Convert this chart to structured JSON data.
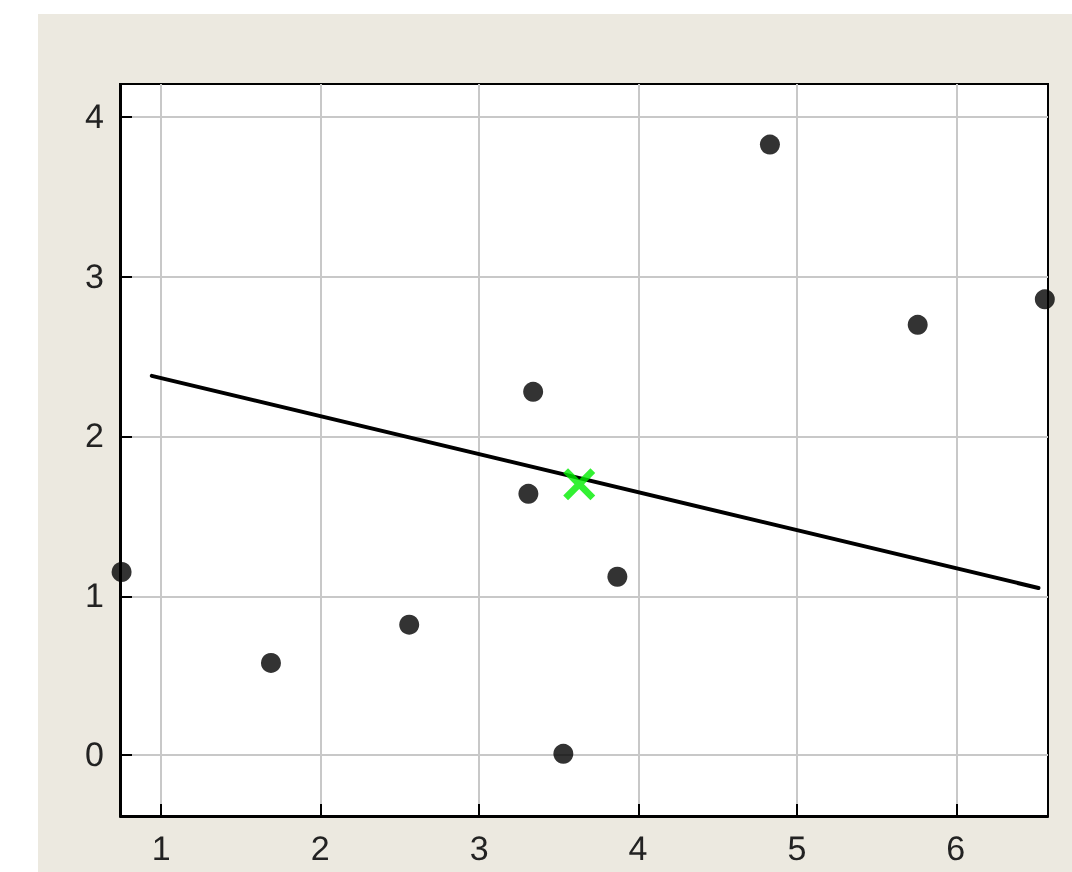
{
  "chart_data": {
    "type": "scatter",
    "xlim": [
      0.74,
      6.58
    ],
    "xticks": [
      1,
      2,
      3,
      4,
      5,
      6
    ],
    "ylim": [
      -0.38,
      4.21
    ],
    "yticks": [
      0,
      1,
      2,
      3,
      4
    ],
    "grid": true,
    "series": [
      {
        "color": "#000000",
        "marker": "circle",
        "x": [
          0.75,
          1.69,
          2.56,
          3.31,
          3.34,
          3.53,
          3.87,
          4.83,
          5.76,
          6.56
        ],
        "values": [
          1.15,
          0.58,
          0.82,
          1.64,
          2.28,
          0.01,
          1.12,
          3.83,
          2.7,
          2.86
        ]
      },
      {
        "type": "line",
        "color": "#000000",
        "marker": "none",
        "line_style": "solid",
        "x": [
          0.94,
          6.52
        ],
        "values": [
          2.38,
          1.05
        ]
      },
      {
        "type": "scatter",
        "color": "#00ee00",
        "marker": "cross",
        "x": [
          3.63
        ],
        "values": [
          1.7
        ]
      }
    ]
  }
}
